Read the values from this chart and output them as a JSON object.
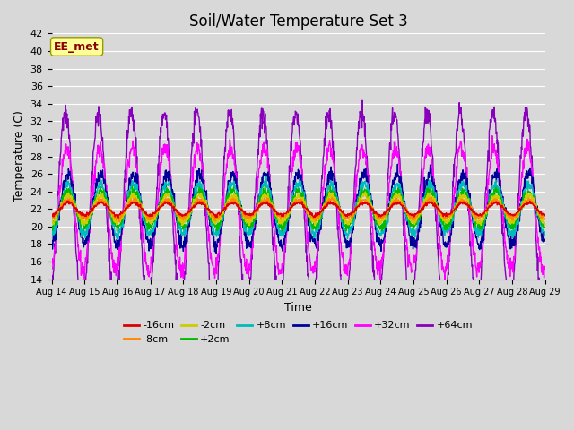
{
  "title": "Soil/Water Temperature Set 3",
  "xlabel": "Time",
  "ylabel": "Temperature (C)",
  "ylim": [
    14,
    42
  ],
  "yticks": [
    14,
    16,
    18,
    20,
    22,
    24,
    26,
    28,
    30,
    32,
    34,
    36,
    38,
    40,
    42
  ],
  "x_tick_labels": [
    "Aug 14",
    "Aug 15",
    "Aug 16",
    "Aug 17",
    "Aug 18",
    "Aug 19",
    "Aug 20",
    "Aug 21",
    "Aug 22",
    "Aug 23",
    "Aug 24",
    "Aug 25",
    "Aug 26",
    "Aug 27",
    "Aug 28",
    "Aug 29"
  ],
  "series": [
    {
      "label": "-16cm",
      "color": "#dd0000",
      "amplitude": 0.7,
      "phase": 0.0,
      "noise": 0.1
    },
    {
      "label": "-8cm",
      "color": "#ff8800",
      "amplitude": 1.0,
      "phase": 0.0,
      "noise": 0.15
    },
    {
      "label": "-2cm",
      "color": "#cccc00",
      "amplitude": 1.5,
      "phase": 0.0,
      "noise": 0.2
    },
    {
      "label": "+2cm",
      "color": "#00bb00",
      "amplitude": 2.0,
      "phase": 0.0,
      "noise": 0.25
    },
    {
      "label": "+8cm",
      "color": "#00bbbb",
      "amplitude": 2.8,
      "phase": 0.0,
      "noise": 0.3
    },
    {
      "label": "+16cm",
      "color": "#000099",
      "amplitude": 4.0,
      "phase": 0.0,
      "noise": 0.4
    },
    {
      "label": "+32cm",
      "color": "#ff00ff",
      "amplitude": 7.0,
      "phase": 0.3,
      "noise": 0.5
    },
    {
      "label": "+64cm",
      "color": "#8800bb",
      "amplitude": 11.0,
      "phase": 0.5,
      "noise": 0.6
    }
  ],
  "annotation_text": "EE_met",
  "annotation_color": "#8b0000",
  "annotation_bg": "#ffff99",
  "background_color": "#d8d8d8",
  "plot_bg": "#d8d8d8",
  "grid_color": "#ffffff",
  "title_fontsize": 12,
  "n_days": 15,
  "mean_temp": 22.0
}
